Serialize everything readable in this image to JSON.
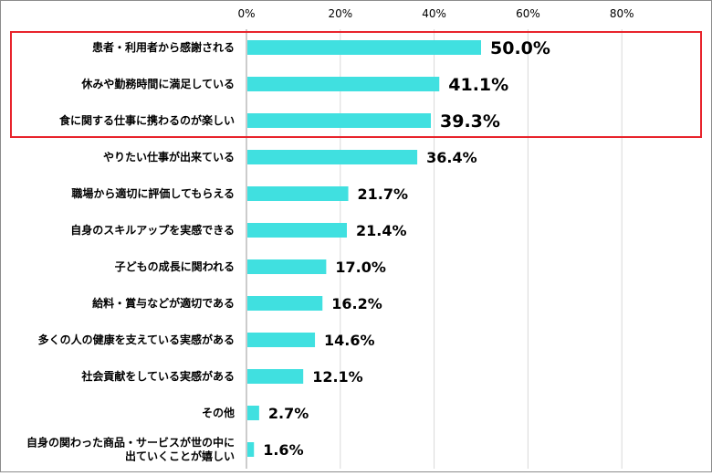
{
  "chart_data": {
    "type": "bar",
    "orientation": "horizontal",
    "categories": [
      [
        "患者・利用者から感謝される"
      ],
      [
        "休みや勤務時間に満足している"
      ],
      [
        "食に関する仕事に携わるのが楽しい"
      ],
      [
        "やりたい仕事が出来ている"
      ],
      [
        "職場から適切に評価してもらえる"
      ],
      [
        "自身のスキルアップを実感できる"
      ],
      [
        "子どもの成長に関われる"
      ],
      [
        "給料・賞与などが適切である"
      ],
      [
        "多くの人の健康を支えている実感がある"
      ],
      [
        "社会貢献をしている実感がある"
      ],
      [
        "その他"
      ],
      [
        "自身の関わった商品・サービスが世の中に",
        "出ていくことが嬉しい"
      ]
    ],
    "values": [
      50.0,
      41.1,
      39.3,
      36.4,
      21.7,
      21.4,
      17.0,
      16.2,
      14.6,
      12.1,
      2.7,
      1.6
    ],
    "value_labels": [
      "50.0%",
      "41.1%",
      "39.3%",
      "36.4%",
      "21.7%",
      "21.4%",
      "17.0%",
      "16.2%",
      "14.6%",
      "12.1%",
      "2.7%",
      "1.6%"
    ],
    "x_ticks": [
      0,
      20,
      40,
      60,
      80
    ],
    "x_tick_labels": [
      "0%",
      "20%",
      "40%",
      "60%",
      "80%"
    ],
    "xlim": [
      0,
      80
    ],
    "highlighted_categories": [
      0,
      1,
      2
    ],
    "grid": true,
    "legend": "none"
  },
  "colors": {
    "bar": "#40e0e0",
    "highlight_border": "#e8242c",
    "grid": "#d9d9d9",
    "axis": "#9a9a9a",
    "text": "#000000"
  }
}
